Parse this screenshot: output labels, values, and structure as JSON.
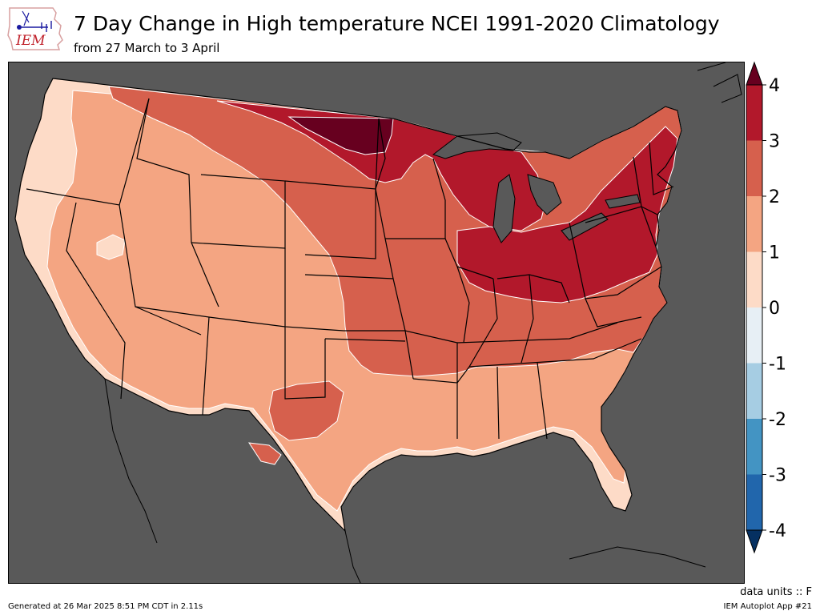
{
  "header": {
    "title": "7 Day Change in High temperature NCEI 1991-2020 Climatology",
    "subtitle": "from 27 March to 3 April",
    "logo_text": "IEM"
  },
  "map": {
    "type": "filled-contour",
    "region": "Contiguous United States",
    "background_color": "#595959",
    "contour_line_color": "#ffffff",
    "boundary_color": "#000000"
  },
  "colorbar": {
    "levels": [
      "4",
      "3",
      "2",
      "1",
      "0",
      "-1",
      "-2",
      "-3",
      "-4"
    ],
    "colors_high_to_low": [
      "#b2182b",
      "#d6604d",
      "#f4a582",
      "#fddbc7",
      "#e7eff5",
      "#a6cde3",
      "#4394c3",
      "#2166ac"
    ],
    "extend_max_color": "#67001f",
    "extend_min_color": "#053061"
  },
  "footer": {
    "units": "data units :: F",
    "generated": "Generated at 26 Mar 2025 8:51 PM CDT in 2.11s",
    "app": "IEM Autoplot App #21"
  }
}
